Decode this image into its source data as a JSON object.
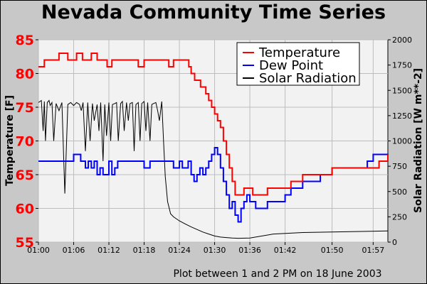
{
  "chart_data": {
    "type": "line",
    "title": "Nevada Community Time Series",
    "footnote": "Plot between 1 and 2 PM on 18 June 2003",
    "ylabel_left": "Temperature [F]",
    "ylabel_right": "Solar Radiation [W m**-2]",
    "ylim_left": [
      55,
      85
    ],
    "ylim_right": [
      0,
      2000
    ],
    "yticks_left": [
      "55",
      "60",
      "65",
      "70",
      "75",
      "80",
      "85"
    ],
    "yticks_right": [
      "0",
      "250",
      "500",
      "750",
      "1000",
      "1250",
      "1500",
      "1750",
      "2000"
    ],
    "xlim_minutes": [
      0,
      59.5
    ],
    "xticks": [
      "01:00",
      "01:06",
      "01:12",
      "01:18",
      "01:24",
      "01:30",
      "01:36",
      "01:42",
      "01:50",
      "01:57"
    ],
    "xtick_minutes": [
      0,
      6,
      12,
      18,
      24,
      30,
      36,
      42,
      50,
      57
    ],
    "grid": true,
    "legend_position": "top-right",
    "colors": {
      "temperature": "#ff0000",
      "dewpoint": "#0000ff",
      "solar": "#000000"
    },
    "series": [
      {
        "name": "Temperature",
        "axis": "left",
        "color": "#ff0000",
        "step": true,
        "x": [
          0,
          1,
          2,
          3,
          3.5,
          4.3,
          5,
          6,
          6.5,
          7.5,
          8,
          9,
          10,
          11,
          11.7,
          12.5,
          14,
          16,
          17,
          18,
          19,
          20.3,
          21,
          22,
          22.2,
          23,
          24,
          25.6,
          26,
          26.6,
          27,
          27.6,
          28,
          28.5,
          29,
          29.5,
          30,
          30.5,
          31,
          31.5,
          32,
          32.5,
          33,
          33.5,
          34,
          35,
          36,
          36.5,
          37,
          39,
          42,
          43,
          45,
          48,
          50,
          54,
          58,
          59.5
        ],
        "values": [
          81,
          82,
          82,
          82,
          83,
          83,
          82,
          82,
          83,
          82,
          82,
          83,
          82,
          82,
          81,
          82,
          82,
          82,
          81,
          82,
          82,
          82,
          82,
          82,
          81,
          82,
          82,
          81,
          80,
          79,
          79,
          78,
          78,
          77,
          76,
          75,
          74,
          73,
          72,
          70,
          68,
          66,
          64,
          62,
          62,
          63,
          63,
          62,
          62,
          63,
          63,
          64,
          65,
          65,
          66,
          66,
          67,
          68
        ]
      },
      {
        "name": "Dew Point",
        "axis": "left",
        "color": "#0000ff",
        "step": true,
        "x": [
          0,
          4,
          6,
          7,
          7.2,
          8,
          8.5,
          9,
          9.5,
          10,
          10.5,
          11,
          12,
          12.5,
          13,
          13.5,
          14,
          16,
          17,
          18,
          19,
          20,
          21,
          22,
          23,
          24,
          24.5,
          25.5,
          26,
          26.5,
          27,
          27.5,
          28,
          28.5,
          29,
          29.5,
          30,
          30.5,
          31,
          31.5,
          32,
          32.5,
          33,
          33.5,
          34,
          34.5,
          35,
          35.5,
          36,
          37,
          39,
          42,
          43,
          45,
          48,
          50,
          54,
          56,
          57,
          59.5
        ],
        "values": [
          67,
          67,
          68,
          68,
          67,
          66,
          67,
          66,
          67,
          65,
          66,
          65,
          67,
          65,
          66,
          67,
          67,
          67,
          67,
          66,
          67,
          67,
          67,
          67,
          66,
          67,
          66,
          67,
          65,
          64,
          65,
          66,
          65,
          66,
          67,
          68,
          69,
          68,
          66,
          64,
          62,
          60,
          61,
          59,
          58,
          60,
          61,
          62,
          61,
          60,
          61,
          62,
          63,
          64,
          65,
          66,
          66,
          67,
          68,
          67
        ]
      },
      {
        "name": "Solar Radiation",
        "axis": "right",
        "color": "#000000",
        "step": false,
        "x": [
          0,
          0.5,
          0.8,
          1,
          1.2,
          1.5,
          1.8,
          2,
          2.3,
          2.6,
          3,
          3.5,
          4,
          4.5,
          5,
          5.5,
          6,
          6.5,
          7,
          7.3,
          7.6,
          8,
          8.4,
          8.8,
          9.2,
          9.5,
          10,
          10.3,
          10.6,
          11,
          11.3,
          11.6,
          12,
          12.3,
          12.6,
          13,
          13.3,
          13.6,
          14,
          14.3,
          14.6,
          15,
          15.3,
          15.6,
          16,
          16.3,
          16.6,
          17,
          17.3,
          17.6,
          18,
          18.3,
          18.6,
          19,
          19.3,
          19.6,
          20,
          20.3,
          20.6,
          21,
          21.3,
          21.6,
          22,
          22.5,
          23,
          24,
          25,
          26,
          27,
          28,
          29,
          30,
          31,
          32,
          33,
          34,
          36,
          40,
          45,
          50,
          55,
          59.5
        ],
        "values": [
          1380,
          1400,
          1100,
          1390,
          1000,
          1380,
          1400,
          1350,
          1380,
          1000,
          1370,
          1300,
          1380,
          480,
          1360,
          1380,
          1350,
          1380,
          1360,
          1300,
          1380,
          900,
          1380,
          1000,
          1370,
          1200,
          1360,
          1100,
          1380,
          800,
          1360,
          1050,
          1380,
          1000,
          1360,
          1370,
          1380,
          1000,
          1370,
          1390,
          1100,
          1380,
          1200,
          1370,
          1380,
          900,
          1360,
          1380,
          1000,
          1370,
          1390,
          1100,
          1380,
          1000,
          1360,
          1370,
          1380,
          1300,
          1200,
          1390,
          1000,
          650,
          400,
          280,
          250,
          210,
          180,
          150,
          125,
          100,
          80,
          60,
          50,
          45,
          40,
          38,
          40,
          80,
          95,
          100,
          105,
          110
        ]
      }
    ]
  }
}
